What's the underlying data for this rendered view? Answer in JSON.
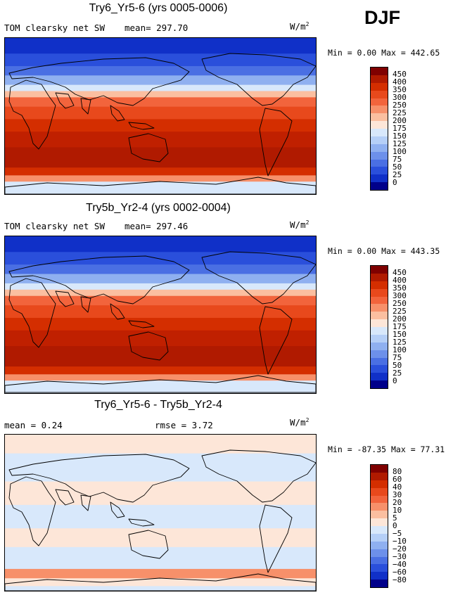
{
  "season": "DJF",
  "panels": [
    {
      "id": "p1",
      "title": "Try6_Yr5-6 (yrs 0005-0006)",
      "left_label": "TOM clearsky net SW",
      "mean_label": "mean= 297.70",
      "units_base": "W/m",
      "units_exp": "2",
      "min_max": "Min =    0.00 Max = 442.65",
      "colorbar": {
        "labels": [
          "450",
          "400",
          "350",
          "300",
          "250",
          "225",
          "200",
          "175",
          "150",
          "125",
          "100",
          "75",
          "50",
          "25",
          "0"
        ],
        "colors": [
          "#7f0000",
          "#b01a00",
          "#d42e00",
          "#e8491c",
          "#f2643c",
          "#f7906a",
          "#fbbfa0",
          "#fde6d8",
          "#d8e8fb",
          "#b5cff7",
          "#8fb0f0",
          "#6d90ea",
          "#4a6fe3",
          "#2a4fdb",
          "#1030c8",
          "#00008a"
        ]
      }
    },
    {
      "id": "p2",
      "title": "Try5b_Yr2-4 (yrs 0002-0004)",
      "left_label": "TOM clearsky net SW",
      "mean_label": "mean= 297.46",
      "units_base": "W/m",
      "units_exp": "2",
      "min_max": "Min =    0.00 Max = 443.35",
      "colorbar": {
        "labels": [
          "450",
          "400",
          "350",
          "300",
          "250",
          "225",
          "200",
          "175",
          "150",
          "125",
          "100",
          "75",
          "50",
          "25",
          "0"
        ],
        "colors": [
          "#7f0000",
          "#b01a00",
          "#d42e00",
          "#e8491c",
          "#f2643c",
          "#f7906a",
          "#fbbfa0",
          "#fde6d8",
          "#d8e8fb",
          "#b5cff7",
          "#8fb0f0",
          "#6d90ea",
          "#4a6fe3",
          "#2a4fdb",
          "#1030c8",
          "#00008a"
        ]
      }
    },
    {
      "id": "p3",
      "title": "Try6_Yr5-6 - Try5b_Yr2-4",
      "left_label": "mean =    0.24",
      "mean_label": "rmse =    3.72",
      "units_base": "W/m",
      "units_exp": "2",
      "min_max": "Min = -87.35 Max =  77.31",
      "colorbar": {
        "labels": [
          "80",
          "60",
          "40",
          "30",
          "20",
          "10",
          "5",
          "0",
          "−5",
          "−10",
          "−20",
          "−30",
          "−40",
          "−60",
          "−80"
        ],
        "colors": [
          "#7f0000",
          "#b01a00",
          "#d42e00",
          "#e8491c",
          "#f2643c",
          "#f7906a",
          "#fbbfa0",
          "#fde6d8",
          "#d8e8fb",
          "#b5cff7",
          "#8fb0f0",
          "#6d90ea",
          "#4a6fe3",
          "#2a4fdb",
          "#1030c8",
          "#00008a"
        ]
      }
    }
  ],
  "map_fields": {
    "sw": {
      "bands": [
        "#1030c8",
        "#2a4fdb",
        "#4a6fe3",
        "#8fb0f0",
        "#d8e8fb",
        "#fbbfa0",
        "#f2643c",
        "#e8491c",
        "#d42e00",
        "#c02000",
        "#b01a00",
        "#d42e00",
        "#f7906a",
        "#d8e8fb"
      ],
      "cuts": [
        0.1,
        0.18,
        0.24,
        0.3,
        0.34,
        0.38,
        0.44,
        0.52,
        0.6,
        0.7,
        0.83,
        0.88,
        0.92,
        1.0
      ]
    },
    "diff": {
      "bands": [
        "#fde6d8",
        "#d8e8fb",
        "#fde6d8",
        "#d8e8fb",
        "#fde6d8",
        "#d8e8fb",
        "#f7906a",
        "#fde6d8",
        "#d8e8fb"
      ],
      "cuts": [
        0.12,
        0.3,
        0.45,
        0.6,
        0.72,
        0.86,
        0.92,
        0.97,
        1.0
      ]
    }
  }
}
